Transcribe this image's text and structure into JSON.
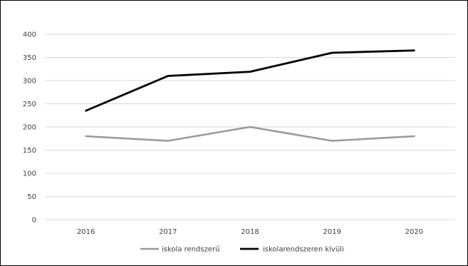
{
  "chart_data": {
    "type": "line",
    "categories": [
      "2016",
      "2017",
      "2018",
      "2019",
      "2020"
    ],
    "series": [
      {
        "name": "iskola rendszerű",
        "values": [
          180,
          170,
          200,
          170,
          180
        ],
        "color": "#999999"
      },
      {
        "name": "iskolarendszeren kívüli",
        "values": [
          235,
          310,
          319,
          360,
          365
        ],
        "color": "#000000"
      }
    ],
    "y_ticks": [
      "0",
      "50",
      "100",
      "150",
      "200",
      "250",
      "300",
      "350",
      "400"
    ],
    "ylim": [
      0,
      400
    ],
    "grid": true,
    "gridline_color": "#d9d9d9",
    "legend_position": "bottom-center"
  }
}
